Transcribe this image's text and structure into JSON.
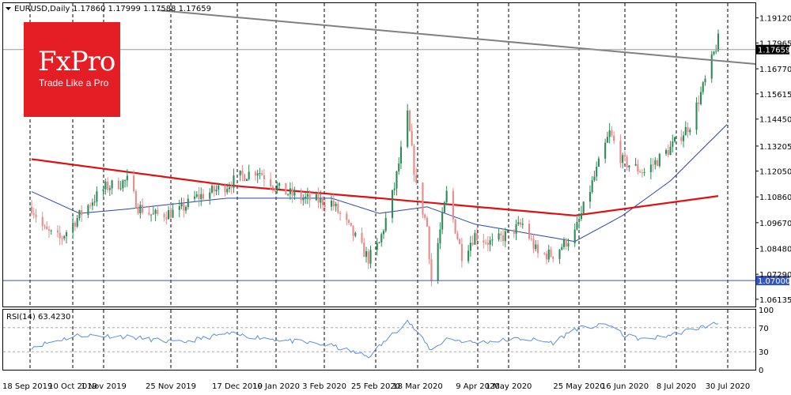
{
  "header": {
    "symbol_label": "EURUSD,Daily",
    "ohlc": "1.17860 1.17999 1.17588 1.17659"
  },
  "logo": {
    "name": "FxPro",
    "tagline": "Trade Like a Pro",
    "color": "#e51e25"
  },
  "colors": {
    "bull": "#2e8b57",
    "bear": "#e88a8a",
    "ma_slow": "#dd1111",
    "ma_fast": "#2846a8",
    "trendline": "#808080",
    "support": "#3355cc",
    "rsi": "#5b8fd6"
  },
  "chart_data": [
    {
      "type": "candlestick",
      "title": "EURUSD,Daily",
      "ylim": [
        1.058,
        1.198
      ],
      "price_axis_ticks": [
        "1.19120",
        "1.17965",
        "1.16770",
        "1.15615",
        "1.14450",
        "1.13205",
        "1.12050",
        "1.10860",
        "1.09670",
        "1.08480",
        "1.07290",
        "1.06135"
      ],
      "x_axis_labels": [
        "18 Sep 2019",
        "10 Oct 2019",
        "1 Nov 2019",
        "25 Nov 2019",
        "17 Dec 2019",
        "10 Jan 2020",
        "3 Feb 2020",
        "25 Feb 2020",
        "18 Mar 2020",
        "9 Apr 2020",
        "1 May 2020",
        "25 May 2020",
        "16 Jun 2020",
        "8 Jul 2020",
        "30 Jul 2020"
      ],
      "grid": "vertical dashed lines at each date label",
      "current_price_label": "1.17659",
      "support_label": "1.07000",
      "support_level": 1.07,
      "trendline": {
        "start": [
          "18 Sep 2019",
          1.2
        ],
        "end": [
          "4 Aug 2020",
          1.171
        ]
      },
      "close_path_anchors": [
        [
          "18 Sep 2019",
          1.104
        ],
        [
          "24 Sep 2019",
          1.093
        ],
        [
          "1 Oct 2019",
          1.089
        ],
        [
          "10 Oct 2019",
          1.1
        ],
        [
          "16 Oct 2019",
          1.107
        ],
        [
          "22 Oct 2019",
          1.113
        ],
        [
          "1 Nov 2019",
          1.116
        ],
        [
          "6 Nov 2019",
          1.104
        ],
        [
          "13 Nov 2019",
          1.1
        ],
        [
          "25 Nov 2019",
          1.102
        ],
        [
          "2 Dec 2019",
          1.108
        ],
        [
          "10 Dec 2019",
          1.111
        ],
        [
          "17 Dec 2019",
          1.114
        ],
        [
          "23 Dec 2019",
          1.118
        ],
        [
          "31 Dec 2019",
          1.121
        ],
        [
          "10 Jan 2020",
          1.112
        ],
        [
          "20 Jan 2020",
          1.108
        ],
        [
          "3 Feb 2020",
          1.106
        ],
        [
          "10 Feb 2020",
          1.096
        ],
        [
          "20 Feb 2020",
          1.08
        ],
        [
          "25 Feb 2020",
          1.087
        ],
        [
          "3 Mar 2020",
          1.113
        ],
        [
          "9 Mar 2020",
          1.146
        ],
        [
          "13 Mar 2020",
          1.113
        ],
        [
          "18 Mar 2020",
          1.095
        ],
        [
          "20 Mar 2020",
          1.07
        ],
        [
          "27 Mar 2020",
          1.11
        ],
        [
          "3 Apr 2020",
          1.082
        ],
        [
          "9 Apr 2020",
          1.091
        ],
        [
          "17 Apr 2020",
          1.087
        ],
        [
          "1 May 2020",
          1.096
        ],
        [
          "8 May 2020",
          1.082
        ],
        [
          "15 May 2020",
          1.082
        ],
        [
          "25 May 2020",
          1.092
        ],
        [
          "1 Jun 2020",
          1.112
        ],
        [
          "10 Jun 2020",
          1.138
        ],
        [
          "16 Jun 2020",
          1.125
        ],
        [
          "26 Jun 2020",
          1.12
        ],
        [
          "8 Jul 2020",
          1.131
        ],
        [
          "17 Jul 2020",
          1.142
        ],
        [
          "24 Jul 2020",
          1.162
        ],
        [
          "30 Jul 2020",
          1.181
        ],
        [
          "4 Aug 2020",
          1.176
        ]
      ],
      "ma_slow_anchors": [
        [
          "18 Sep 2019",
          1.126
        ],
        [
          "17 Dec 2019",
          1.114
        ],
        [
          "25 Feb 2020",
          1.108
        ],
        [
          "25 May 2020",
          1.1
        ],
        [
          "30 Jul 2020",
          1.109
        ]
      ],
      "ma_fast_anchors": [
        [
          "18 Sep 2019",
          1.111
        ],
        [
          "10 Oct 2019",
          1.101
        ],
        [
          "1 Nov 2019",
          1.103
        ],
        [
          "17 Dec 2019",
          1.108
        ],
        [
          "3 Feb 2020",
          1.108
        ],
        [
          "25 Feb 2020",
          1.101
        ],
        [
          "18 Mar 2020",
          1.104
        ],
        [
          "9 Apr 2020",
          1.096
        ],
        [
          "25 May 2020",
          1.088
        ],
        [
          "16 Jun 2020",
          1.1
        ],
        [
          "8 Jul 2020",
          1.116
        ],
        [
          "4 Aug 2020",
          1.143
        ]
      ]
    },
    {
      "type": "line",
      "title": "RSI(14) 63.4230",
      "ylim": [
        0,
        100
      ],
      "y_ticks": [
        "100",
        "70",
        "30",
        "0"
      ],
      "levels": [
        70,
        30
      ],
      "rsi_anchors": [
        [
          "18 Sep 2019",
          38
        ],
        [
          "10 Oct 2019",
          58
        ],
        [
          "1 Nov 2019",
          55
        ],
        [
          "25 Nov 2019",
          45
        ],
        [
          "17 Dec 2019",
          60
        ],
        [
          "10 Jan 2020",
          50
        ],
        [
          "3 Feb 2020",
          40
        ],
        [
          "20 Feb 2020",
          22
        ],
        [
          "9 Mar 2020",
          82
        ],
        [
          "20 Mar 2020",
          32
        ],
        [
          "27 Mar 2020",
          52
        ],
        [
          "9 Apr 2020",
          45
        ],
        [
          "1 May 2020",
          52
        ],
        [
          "15 May 2020",
          45
        ],
        [
          "25 May 2020",
          68
        ],
        [
          "10 Jun 2020",
          75
        ],
        [
          "16 Jun 2020",
          58
        ],
        [
          "26 Jun 2020",
          50
        ],
        [
          "8 Jul 2020",
          58
        ],
        [
          "30 Jul 2020",
          78
        ],
        [
          "4 Aug 2020",
          63
        ]
      ]
    }
  ]
}
